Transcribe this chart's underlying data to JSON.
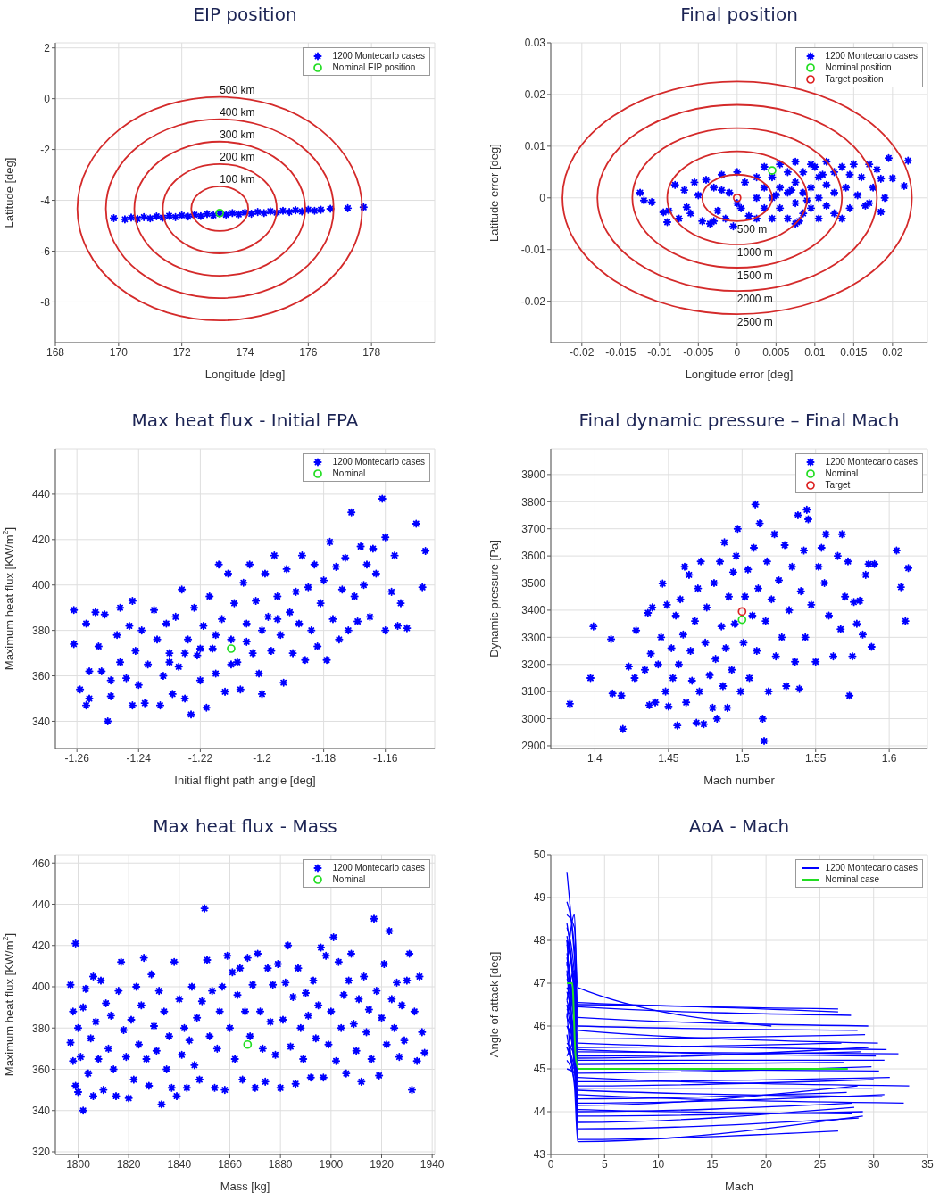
{
  "chart_data": [
    {
      "type": "scatter",
      "title": "EIP position",
      "xlabel": "Longitude [deg]",
      "ylabel": "Latitude [deg]",
      "xlim": [
        168,
        180
      ],
      "ylim": [
        -9.6,
        2.2
      ],
      "xticks": [
        168,
        170,
        172,
        174,
        176,
        178
      ],
      "yticks": [
        -8,
        -6,
        -4,
        -2,
        0,
        2
      ],
      "grid": true,
      "legend": "top right",
      "series": [
        {
          "name": "1200 Montecarlo cases",
          "marker": "cross",
          "color": "#0000ff",
          "x": [
            169.85,
            170.2,
            170.4,
            170.6,
            170.8,
            171.0,
            171.2,
            171.4,
            171.6,
            171.8,
            172.0,
            172.2,
            172.4,
            172.6,
            172.8,
            173.0,
            173.2,
            173.4,
            173.6,
            173.8,
            174.0,
            174.2,
            174.4,
            174.6,
            174.8,
            175.0,
            175.2,
            175.4,
            175.6,
            175.8,
            176.0,
            176.2,
            176.4,
            176.7,
            177.25,
            177.75
          ],
          "values": [
            -4.7,
            -4.75,
            -4.68,
            -4.73,
            -4.66,
            -4.71,
            -4.63,
            -4.68,
            -4.61,
            -4.66,
            -4.59,
            -4.64,
            -4.57,
            -4.62,
            -4.54,
            -4.59,
            -4.52,
            -4.57,
            -4.5,
            -4.55,
            -4.48,
            -4.53,
            -4.46,
            -4.5,
            -4.43,
            -4.48,
            -4.41,
            -4.46,
            -4.39,
            -4.44,
            -4.37,
            -4.41,
            -4.37,
            -4.33,
            -4.31,
            -4.27
          ]
        },
        {
          "name": "Nominal EIP position",
          "marker": "circle",
          "color": "#22dd22",
          "x": [
            173.2
          ],
          "values": [
            -4.5
          ]
        }
      ],
      "annotations": [
        "100 km",
        "200 km",
        "300 km",
        "400 km",
        "500 km"
      ]
    },
    {
      "type": "scatter",
      "title": "Final position",
      "xlabel": "Longitude error [deg]",
      "ylabel": "Latitude error [deg]",
      "xlim": [
        -0.024,
        0.0245
      ],
      "ylim": [
        -0.028,
        0.03
      ],
      "xticks": [
        -0.02,
        -0.015,
        -0.01,
        -0.005,
        0,
        0.005,
        0.01,
        0.015,
        0.02
      ],
      "yticks": [
        -0.02,
        -0.01,
        0,
        0.01,
        0.02,
        0.03
      ],
      "grid": true,
      "legend": "top right",
      "series": [
        {
          "name": "1200 Montecarlo cases",
          "marker": "cross",
          "color": "#0000ff",
          "x": [
            -0.0125,
            -0.012,
            -0.011,
            -0.0095,
            -0.009,
            -0.0088,
            -0.008,
            -0.0075,
            -0.0068,
            -0.006,
            -0.0055,
            -0.005,
            -0.0045,
            -0.004,
            -0.0035,
            -0.003,
            -0.0025,
            -0.002,
            -0.0015,
            -0.001,
            -0.0005,
            0,
            0.0005,
            0.001,
            0.0015,
            -0.002,
            -0.003,
            0,
            -0.0065,
            0.0025,
            0.0025,
            0.0025,
            0.0035,
            0.0035,
            0.0035,
            0.0045,
            0.0045,
            0.0045,
            0.0055,
            0.0055,
            0.0055,
            0.0065,
            0.0065,
            0.0065,
            0.0075,
            0.0075,
            0.0075,
            0.0075,
            0.0085,
            0.0085,
            0.0085,
            0.0095,
            0.0095,
            0.0095,
            0.0105,
            0.0105,
            0.0105,
            0.0115,
            0.0115,
            0.0115,
            0.0125,
            0.0125,
            0.0125,
            0.005,
            0.008,
            0.01,
            0.007,
            0.009,
            0.011,
            0.0135,
            0.014,
            0.0145,
            0.015,
            0.0155,
            0.016,
            0.0165,
            0.017,
            0.0175,
            0.018,
            0.0185,
            0.0185,
            0.019,
            0.0195,
            0.02,
            0.0215,
            0.022,
            0.0135,
            0.0145,
            0.017
          ],
          "values": [
            0.001,
            -0.0005,
            -0.0008,
            -0.0028,
            -0.0047,
            -0.0025,
            0.0025,
            -0.004,
            0.0015,
            -0.003,
            0.003,
            0.0005,
            -0.0045,
            0.0035,
            -0.005,
            0.002,
            -0.0025,
            0.0045,
            -0.004,
            0.001,
            -0.0055,
            0.005,
            -0.002,
            0.003,
            -0.0035,
            0.0015,
            -0.0045,
            -0.001,
            -0.0018,
            0.004,
            0,
            -0.004,
            0.006,
            0.002,
            -0.002,
            0.004,
            0,
            -0.004,
            0.0065,
            0.002,
            -0.002,
            0.005,
            0.001,
            -0.004,
            0.007,
            0.003,
            -0.001,
            -0.005,
            0.005,
            0.001,
            -0.003,
            0.0065,
            0.002,
            -0.002,
            0.004,
            0,
            -0.004,
            0.007,
            0.0025,
            -0.0015,
            0.005,
            0.001,
            -0.003,
            0.0005,
            -0.0045,
            0.006,
            0.0015,
            -0.0005,
            0.0045,
            0.006,
            0.002,
            -0.002,
            0.0065,
            0.0005,
            0.004,
            -0.0015,
            0.0065,
            0.002,
            0.0055,
            -0.0027,
            0.0037,
            0,
            0.0077,
            0.0038,
            0.0023,
            0.0072,
            -0.004,
            0.0045,
            -0.001
          ]
        },
        {
          "name": "Nominal position",
          "marker": "circle",
          "color": "#22dd22",
          "x": [
            0.0045
          ],
          "values": [
            0.0053
          ]
        },
        {
          "name": "Target position",
          "marker": "circle",
          "color": "#dd2222",
          "x": [
            0
          ],
          "values": [
            0
          ]
        }
      ],
      "annotations": [
        "500 m",
        "1000 m",
        "1500 m",
        "2000 m",
        "2500 m"
      ]
    },
    {
      "type": "scatter",
      "title": "Max heat flux - Initial FPA",
      "xlabel": "Initial flight path angle [deg]",
      "ylabel": "Maximum heat flux [KW/m$^{2}$]",
      "xlim": [
        -1.267,
        -1.144
      ],
      "ylim": [
        328,
        460
      ],
      "xticks": [
        -1.26,
        -1.24,
        -1.22,
        -1.2,
        -1.18,
        -1.16
      ],
      "yticks": [
        340,
        360,
        380,
        400,
        420,
        440
      ],
      "grid": true,
      "legend": "top right",
      "series": [
        {
          "name": "1200 Montecarlo cases",
          "marker": "cross",
          "color": "#0000ff",
          "x": [
            -1.261,
            -1.261,
            -1.259,
            -1.257,
            -1.257,
            -1.256,
            -1.256,
            -1.254,
            -1.253,
            -1.252,
            -1.251,
            -1.25,
            -1.249,
            -1.249,
            -1.247,
            -1.246,
            -1.246,
            -1.244,
            -1.243,
            -1.242,
            -1.242,
            -1.241,
            -1.24,
            -1.239,
            -1.238,
            -1.237,
            -1.235,
            -1.234,
            -1.233,
            -1.232,
            -1.231,
            -1.23,
            -1.229,
            -1.228,
            -1.227,
            -1.226,
            -1.225,
            -1.224,
            -1.223,
            -1.222,
            -1.221,
            -1.22,
            -1.219,
            -1.218,
            -1.217,
            -1.216,
            -1.215,
            -1.214,
            -1.213,
            -1.212,
            -1.211,
            -1.21,
            -1.209,
            -1.208,
            -1.207,
            -1.206,
            -1.205,
            -1.204,
            -1.203,
            -1.202,
            -1.201,
            -1.2,
            -1.199,
            -1.198,
            -1.197,
            -1.196,
            -1.195,
            -1.194,
            -1.193,
            -1.192,
            -1.191,
            -1.19,
            -1.189,
            -1.188,
            -1.187,
            -1.186,
            -1.185,
            -1.184,
            -1.183,
            -1.182,
            -1.181,
            -1.18,
            -1.179,
            -1.178,
            -1.177,
            -1.176,
            -1.175,
            -1.174,
            -1.173,
            -1.172,
            -1.171,
            -1.17,
            -1.169,
            -1.168,
            -1.167,
            -1.166,
            -1.165,
            -1.164,
            -1.163,
            -1.161,
            -1.16,
            -1.16,
            -1.158,
            -1.157,
            -1.156,
            -1.155,
            -1.153,
            -1.15,
            -1.148,
            -1.147,
            -1.215,
            -1.22,
            -1.205,
            -1.21,
            -1.2,
            -1.195,
            -1.23,
            -1.225
          ],
          "values": [
            389,
            374,
            354,
            383,
            347,
            362,
            350,
            388,
            373,
            362,
            387,
            340,
            358,
            351,
            378,
            390,
            366,
            359,
            382,
            393,
            347,
            371,
            356,
            380,
            348,
            365,
            389,
            376,
            347,
            360,
            383,
            370,
            352,
            386,
            364,
            398,
            350,
            376,
            343,
            390,
            369,
            358,
            382,
            346,
            395,
            372,
            361,
            409,
            385,
            353,
            405,
            376,
            392,
            366,
            354,
            401,
            383,
            409,
            370,
            393,
            361,
            352,
            405,
            386,
            371,
            413,
            395,
            378,
            357,
            407,
            388,
            370,
            397,
            383,
            413,
            367,
            399,
            380,
            409,
            373,
            392,
            402,
            367,
            419,
            385,
            408,
            376,
            398,
            412,
            380,
            432,
            395,
            384,
            417,
            400,
            409,
            386,
            416,
            405,
            438,
            421,
            380,
            397,
            413,
            382,
            392,
            381,
            427,
            399,
            415,
            378,
            372,
            375,
            365,
            380,
            385,
            366,
            370
          ]
        },
        {
          "name": "Nominal",
          "marker": "circle",
          "color": "#22dd22",
          "x": [
            -1.21
          ],
          "values": [
            372
          ]
        }
      ]
    },
    {
      "type": "scatter",
      "title": "Final dynamic pressure – Final Mach",
      "xlabel": "Mach number",
      "ylabel": "Dynamic pressure [Pa]",
      "xlim": [
        1.37,
        1.626
      ],
      "ylim": [
        2890,
        3995
      ],
      "xticks": [
        1.4,
        1.45,
        1.5,
        1.55,
        1.6
      ],
      "yticks": [
        2900,
        3000,
        3100,
        3200,
        3300,
        3400,
        3500,
        3600,
        3700,
        3800,
        3900
      ],
      "grid": true,
      "legend": "top right",
      "series": [
        {
          "name": "1200 Montecarlo cases",
          "marker": "cross",
          "color": "#0000ff",
          "x": [
            1.383,
            1.397,
            1.399,
            1.411,
            1.412,
            1.418,
            1.419,
            1.423,
            1.427,
            1.428,
            1.434,
            1.436,
            1.437,
            1.438,
            1.439,
            1.441,
            1.443,
            1.445,
            1.446,
            1.448,
            1.449,
            1.45,
            1.452,
            1.453,
            1.455,
            1.456,
            1.457,
            1.458,
            1.46,
            1.461,
            1.462,
            1.464,
            1.465,
            1.466,
            1.468,
            1.469,
            1.47,
            1.471,
            1.472,
            1.474,
            1.475,
            1.476,
            1.478,
            1.48,
            1.481,
            1.482,
            1.483,
            1.485,
            1.486,
            1.487,
            1.488,
            1.489,
            1.49,
            1.491,
            1.493,
            1.494,
            1.495,
            1.496,
            1.497,
            1.499,
            1.501,
            1.502,
            1.504,
            1.505,
            1.507,
            1.508,
            1.509,
            1.51,
            1.511,
            1.512,
            1.514,
            1.515,
            1.516,
            1.517,
            1.518,
            1.52,
            1.522,
            1.523,
            1.525,
            1.527,
            1.529,
            1.53,
            1.532,
            1.534,
            1.536,
            1.538,
            1.539,
            1.54,
            1.542,
            1.543,
            1.544,
            1.545,
            1.547,
            1.55,
            1.552,
            1.554,
            1.556,
            1.557,
            1.559,
            1.562,
            1.565,
            1.567,
            1.568,
            1.57,
            1.572,
            1.573,
            1.575,
            1.576,
            1.578,
            1.58,
            1.582,
            1.584,
            1.586,
            1.588,
            1.59,
            1.605,
            1.608,
            1.611,
            1.613
          ],
          "values": [
            3055,
            3150,
            3340,
            3293,
            3093,
            3085,
            2962,
            3192,
            3150,
            3325,
            3180,
            3390,
            3050,
            3240,
            3410,
            3060,
            3200,
            3300,
            3498,
            3100,
            3420,
            3045,
            3260,
            3150,
            3380,
            2975,
            3200,
            3440,
            3310,
            3560,
            3060,
            3530,
            3250,
            3140,
            3360,
            2985,
            3480,
            3100,
            3580,
            2980,
            3280,
            3410,
            3160,
            3040,
            3500,
            3220,
            3000,
            3580,
            3340,
            3120,
            3650,
            3260,
            3040,
            3450,
            3180,
            3540,
            3350,
            3600,
            3700,
            3100,
            3280,
            3450,
            3550,
            3150,
            3380,
            3630,
            3790,
            3250,
            3480,
            3720,
            3000,
            2918,
            3360,
            3580,
            3100,
            3440,
            3680,
            3230,
            3510,
            3300,
            3640,
            3120,
            3400,
            3560,
            3210,
            3750,
            3110,
            3470,
            3620,
            3300,
            3770,
            3735,
            3420,
            3210,
            3560,
            3630,
            3500,
            3680,
            3380,
            3230,
            3600,
            3330,
            3680,
            3450,
            3580,
            3085,
            3230,
            3430,
            3350,
            3435,
            3310,
            3530,
            3570,
            3265,
            3570,
            3620,
            3485,
            3360,
            3555
          ]
        },
        {
          "name": "Nominal",
          "marker": "circle",
          "color": "#22dd22",
          "x": [
            1.5
          ],
          "values": [
            3365
          ]
        },
        {
          "name": "Target",
          "marker": "circle",
          "color": "#dd2222",
          "x": [
            1.5
          ],
          "values": [
            3395
          ]
        }
      ]
    },
    {
      "type": "scatter",
      "title": "Max heat flux - Mass",
      "xlabel": "Mass [kg]",
      "ylabel": "Maximum heat flux [KW/m$^{2}$]",
      "xlim": [
        1791,
        1941
      ],
      "ylim": [
        318.7,
        464
      ],
      "xticks": [
        1800,
        1820,
        1840,
        1860,
        1880,
        1900,
        1920,
        1940
      ],
      "yticks": [
        320,
        340,
        360,
        380,
        400,
        420,
        440,
        460
      ],
      "grid": true,
      "legend": "top right",
      "series": [
        {
          "name": "1200 Montecarlo cases",
          "marker": "cross",
          "color": "#0000ff",
          "x": [
            1797,
            1797,
            1798,
            1798,
            1799,
            1799,
            1800,
            1800,
            1801,
            1802,
            1802,
            1803,
            1804,
            1805,
            1806,
            1806,
            1807,
            1808,
            1809,
            1810,
            1811,
            1812,
            1813,
            1814,
            1815,
            1816,
            1817,
            1818,
            1819,
            1820,
            1821,
            1822,
            1823,
            1824,
            1825,
            1826,
            1827,
            1828,
            1829,
            1830,
            1831,
            1832,
            1833,
            1834,
            1835,
            1836,
            1837,
            1838,
            1839,
            1840,
            1841,
            1842,
            1843,
            1844,
            1845,
            1846,
            1847,
            1848,
            1849,
            1850,
            1851,
            1852,
            1853,
            1854,
            1855,
            1856,
            1857,
            1858,
            1859,
            1860,
            1861,
            1862,
            1863,
            1864,
            1865,
            1866,
            1867,
            1868,
            1869,
            1870,
            1871,
            1872,
            1873,
            1874,
            1875,
            1876,
            1877,
            1878,
            1879,
            1880,
            1881,
            1882,
            1883,
            1884,
            1885,
            1886,
            1887,
            1888,
            1889,
            1890,
            1891,
            1892,
            1893,
            1894,
            1895,
            1896,
            1897,
            1898,
            1899,
            1900,
            1901,
            1902,
            1903,
            1904,
            1905,
            1906,
            1907,
            1908,
            1909,
            1910,
            1911,
            1912,
            1913,
            1914,
            1915,
            1916,
            1917,
            1918,
            1919,
            1920,
            1921,
            1922,
            1923,
            1924,
            1925,
            1926,
            1927,
            1928,
            1929,
            1930,
            1931,
            1932,
            1933,
            1934,
            1935,
            1936,
            1937
          ],
          "values": [
            401,
            373,
            364,
            388,
            421,
            352,
            380,
            349,
            366,
            340,
            390,
            399,
            358,
            375,
            347,
            405,
            383,
            365,
            403,
            350,
            392,
            370,
            386,
            360,
            347,
            398,
            412,
            379,
            366,
            346,
            384,
            355,
            400,
            372,
            391,
            414,
            365,
            352,
            406,
            381,
            369,
            398,
            343,
            388,
            360,
            376,
            351,
            412,
            347,
            394,
            367,
            380,
            351,
            374,
            400,
            362,
            385,
            355,
            393,
            438,
            413,
            376,
            398,
            351,
            370,
            388,
            400,
            350,
            415,
            380,
            407,
            365,
            396,
            409,
            355,
            388,
            414,
            376,
            401,
            351,
            416,
            388,
            370,
            354,
            409,
            383,
            401,
            367,
            411,
            351,
            384,
            402,
            420,
            371,
            395,
            353,
            409,
            380,
            365,
            397,
            386,
            356,
            403,
            375,
            391,
            419,
            356,
            415,
            372,
            388,
            424,
            364,
            412,
            380,
            396,
            358,
            403,
            416,
            382,
            369,
            394,
            354,
            405,
            378,
            389,
            365,
            433,
            398,
            357,
            385,
            411,
            372,
            427,
            394,
            380,
            402,
            366,
            391,
            374,
            403,
            416,
            350,
            388,
            364,
            405,
            378,
            368
          ]
        },
        {
          "name": "Nominal",
          "marker": "circle",
          "color": "#22dd22",
          "x": [
            1867
          ],
          "values": [
            372
          ]
        }
      ]
    },
    {
      "type": "line",
      "title": "AoA - Mach",
      "xlabel": "Mach",
      "ylabel": "Angle of attack [deg]",
      "xlim": [
        0,
        35
      ],
      "ylim": [
        43,
        50
      ],
      "xticks": [
        0,
        5,
        10,
        15,
        20,
        25,
        30,
        35
      ],
      "yticks": [
        43,
        44,
        45,
        46,
        47,
        48,
        49,
        50
      ],
      "grid": true,
      "legend": "top right",
      "series": [
        {
          "name": "1200 Montecarlo cases",
          "color": "#0000ff",
          "x": [
            26.7,
            2.5,
            2.2,
            1.5
          ],
          "values": [
            46.4,
            46.55,
            47.6,
            49.6
          ]
        },
        {
          "color": "#0000ff",
          "x": [
            20.5,
            2.5,
            2.2,
            1.5
          ],
          "values": [
            46.0,
            46.9,
            48.3,
            48.6
          ]
        },
        {
          "color": "#0000ff",
          "x": [
            27.9,
            2.5,
            2.2,
            1.5
          ],
          "values": [
            46.25,
            46.45,
            47.0,
            46.2
          ]
        },
        {
          "color": "#0000ff",
          "x": [
            29.5,
            2.5,
            2.2,
            1.5
          ],
          "values": [
            46.0,
            46.2,
            48.6,
            47.4
          ]
        },
        {
          "color": "#0000ff",
          "x": [
            26.7,
            2.5,
            2.2,
            1.5
          ],
          "values": [
            46.33,
            46.5,
            45.9,
            45.3
          ]
        },
        {
          "color": "#0000ff",
          "x": [
            30.4,
            2.5,
            2.2,
            1.5
          ],
          "values": [
            45.6,
            45.9,
            47.3,
            46.6
          ]
        },
        {
          "color": "#0000ff",
          "x": [
            31.2,
            2.5,
            2.2,
            1.5
          ],
          "values": [
            45.45,
            45.6,
            46.4,
            47.1
          ]
        },
        {
          "color": "#0000ff",
          "x": [
            32.3,
            2.5,
            2.2,
            1.5
          ],
          "values": [
            45.35,
            45.4,
            45.0,
            45.8
          ]
        },
        {
          "color": "#0000ff",
          "x": [
            31.0,
            2.5,
            2.2,
            1.5
          ],
          "values": [
            45.2,
            45.2,
            44.9,
            46.3
          ]
        },
        {
          "color": "#0000ff",
          "x": [
            29.2,
            2.5,
            2.2,
            1.5
          ],
          "values": [
            45.8,
            45.7,
            46.8,
            48.1
          ]
        },
        {
          "color": "#0000ff",
          "x": [
            28.5,
            2.5,
            2.2,
            1.5
          ],
          "values": [
            45.9,
            46.0,
            47.8,
            48.9
          ]
        },
        {
          "color": "#0000ff",
          "x": [
            33.3,
            2.5,
            2.2,
            1.5
          ],
          "values": [
            44.6,
            44.8,
            45.4,
            48.0
          ]
        },
        {
          "color": "#0000ff",
          "x": [
            32.8,
            2.5,
            2.2,
            1.5
          ],
          "values": [
            44.2,
            44.4,
            45.1,
            47.3
          ]
        },
        {
          "color": "#0000ff",
          "x": [
            31.0,
            2.5,
            2.2,
            1.5
          ],
          "values": [
            44.4,
            44.2,
            45.6,
            46.8
          ]
        },
        {
          "color": "#0000ff",
          "x": [
            30.0,
            2.5,
            2.2,
            1.5
          ],
          "values": [
            44.75,
            44.6,
            46.0,
            47.6
          ]
        },
        {
          "color": "#0000ff",
          "x": [
            29.0,
            2.5,
            2.2,
            1.5
          ],
          "values": [
            44.0,
            43.9,
            45.8,
            47.7
          ]
        },
        {
          "color": "#0000ff",
          "x": [
            28.6,
            2.5,
            2.2,
            1.5
          ],
          "values": [
            43.85,
            43.6,
            46.1,
            46.9
          ]
        },
        {
          "color": "#0000ff",
          "x": [
            26.7,
            2.5,
            2.2,
            1.5
          ],
          "values": [
            43.55,
            43.35,
            45.5,
            46.2
          ]
        },
        {
          "color": "#0000ff",
          "x": [
            29.0,
            2.5,
            2.2,
            1.5
          ],
          "values": [
            43.9,
            43.3,
            44.6,
            45.5
          ]
        },
        {
          "color": "#0000ff",
          "x": [
            28.0,
            2.5,
            2.2,
            1.5
          ],
          "values": [
            44.2,
            44.0,
            45.2,
            46.0
          ]
        },
        {
          "color": "#0000ff",
          "x": [
            27.5,
            2.5,
            2.2,
            1.5
          ],
          "values": [
            44.45,
            44.3,
            44.9,
            45.0
          ]
        },
        {
          "color": "#0000ff",
          "x": [
            30.5,
            2.5,
            2.2,
            1.5
          ],
          "values": [
            44.95,
            45.0,
            46.2,
            47.2
          ]
        },
        {
          "color": "#0000ff",
          "x": [
            29.8,
            2.5,
            2.2,
            1.5
          ],
          "values": [
            45.05,
            44.9,
            45.3,
            45.6
          ]
        },
        {
          "color": "#0000ff",
          "x": [
            31.5,
            2.5,
            2.2,
            1.5
          ],
          "values": [
            44.8,
            44.7,
            46.5,
            48.4
          ]
        },
        {
          "color": "#0000ff",
          "x": [
            28.8,
            2.5,
            2.2,
            1.5
          ],
          "values": [
            45.4,
            45.3,
            47.0,
            47.9
          ]
        },
        {
          "color": "#0000ff",
          "x": [
            27.0,
            2.5,
            2.2,
            1.5
          ],
          "values": [
            45.6,
            45.5,
            45.7,
            46.0
          ]
        },
        {
          "color": "#0000ff",
          "x": [
            28.2,
            2.5,
            2.2,
            1.5
          ],
          "values": [
            44.1,
            43.75,
            45.0,
            46.5
          ]
        },
        {
          "color": "#0000ff",
          "x": [
            27.2,
            2.5,
            2.2,
            1.5
          ],
          "values": [
            45.15,
            45.1,
            46.6,
            48.0
          ]
        },
        {
          "color": "#0000ff",
          "x": [
            30.8,
            2.5,
            2.2,
            1.5
          ],
          "values": [
            44.35,
            44.5,
            45.0,
            45.5
          ]
        },
        {
          "color": "#0000ff",
          "x": [
            29.5,
            2.5,
            2.2,
            1.5
          ],
          "values": [
            45.5,
            45.25,
            46.0,
            47.5
          ]
        },
        {
          "color": "#0000ff",
          "x": [
            28.5,
            2.5,
            2.2,
            1.5
          ],
          "values": [
            44.6,
            44.15,
            45.4,
            46.6
          ]
        },
        {
          "color": "#0000ff",
          "x": [
            29.9,
            2.5,
            2.2,
            1.5
          ],
          "values": [
            44.55,
            44.55,
            47.2,
            48.3
          ]
        },
        {
          "color": "#0000ff",
          "x": [
            30.2,
            2.5,
            2.2,
            1.5
          ],
          "values": [
            45.3,
            45.45,
            45.9,
            46.4
          ]
        },
        {
          "color": "#0000ff",
          "x": [
            28.0,
            2.5,
            2.2,
            1.5
          ],
          "values": [
            43.95,
            44.05,
            44.7,
            45.2
          ]
        },
        {
          "name": "Nominal case",
          "color": "#22dd22",
          "x": [
            27.6,
            2.6,
            2.3,
            2.0,
            1.5
          ],
          "values": [
            45,
            45,
            45.3,
            47,
            47
          ]
        }
      ]
    }
  ]
}
